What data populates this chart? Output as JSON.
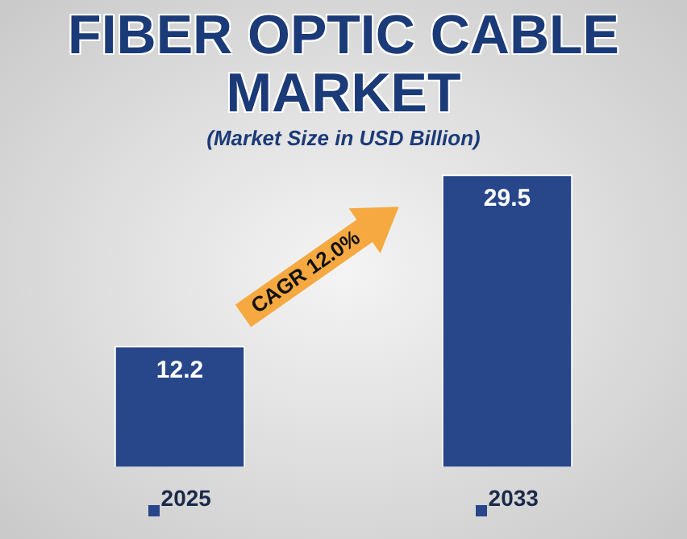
{
  "chart_data": {
    "type": "bar",
    "title": "FIBER OPTIC CABLE MARKET",
    "subtitle": "(Market Size in USD Billion)",
    "categories": [
      "2025",
      "2033"
    ],
    "values": [
      12.2,
      29.5
    ],
    "color": "#27478a",
    "data_labels": true,
    "grid": false,
    "legend": false,
    "annotations": [
      "CAGR 12.0%"
    ]
  }
}
